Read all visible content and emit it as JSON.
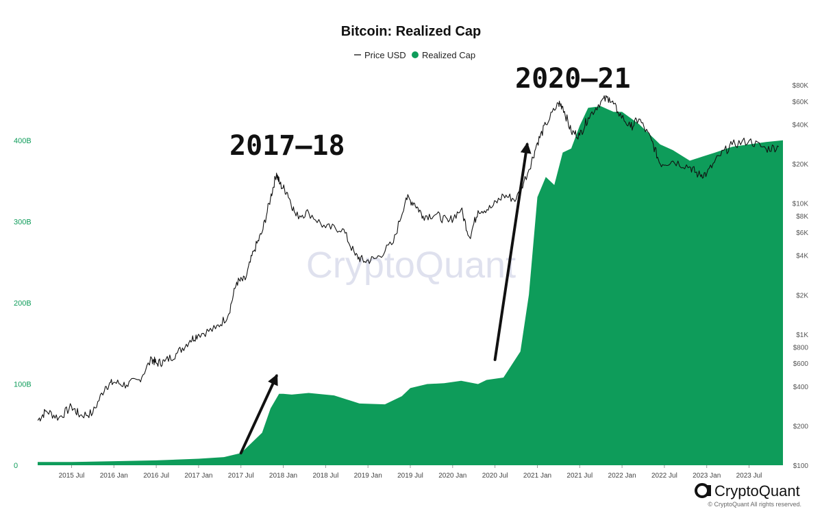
{
  "chart_data": {
    "type": "area",
    "title": "Bitcoin: Realized Cap",
    "legend": [
      {
        "label": "Price USD",
        "style": "line",
        "color": "#111111"
      },
      {
        "label": "Realized Cap",
        "style": "dot",
        "color": "#0e9c5a"
      }
    ],
    "x_ticks": [
      "2015 Jul",
      "2016 Jan",
      "2016 Jul",
      "2017 Jan",
      "2017 Jul",
      "2018 Jan",
      "2018 Jul",
      "2019 Jan",
      "2019 Jul",
      "2020 Jan",
      "2020 Jul",
      "2021 Jan",
      "2021 Jul",
      "2022 Jan",
      "2022 Jul",
      "2023 Jan",
      "2023 Jul"
    ],
    "x_range": [
      2015.1,
      2023.9
    ],
    "left_axis": {
      "ticks": [
        "0",
        "100B",
        "200B",
        "300B",
        "400B"
      ],
      "values": [
        0,
        100,
        200,
        300,
        400
      ],
      "range": [
        0,
        480
      ],
      "unit": "B USD"
    },
    "right_axis": {
      "scale": "log",
      "ticks": [
        "$100",
        "$200",
        "$400",
        "$600",
        "$800",
        "$1K",
        "$2K",
        "$4K",
        "$6K",
        "$8K",
        "$10K",
        "$20K",
        "$40K",
        "$60K",
        "$80K"
      ],
      "values": [
        100,
        200,
        400,
        600,
        800,
        1000,
        2000,
        4000,
        6000,
        8000,
        10000,
        20000,
        40000,
        60000,
        80000
      ],
      "range": [
        100,
        80000
      ]
    },
    "series": [
      {
        "name": "Realized Cap",
        "axis": "left",
        "color": "#0e9c5a",
        "x": [
          2015.1,
          2015.5,
          2016.0,
          2016.5,
          2017.0,
          2017.3,
          2017.5,
          2017.6,
          2017.75,
          2017.85,
          2017.95,
          2018.0,
          2018.1,
          2018.3,
          2018.6,
          2018.9,
          2019.2,
          2019.4,
          2019.5,
          2019.7,
          2019.9,
          2020.1,
          2020.3,
          2020.4,
          2020.6,
          2020.8,
          2020.9,
          2021.0,
          2021.1,
          2021.2,
          2021.3,
          2021.4,
          2021.5,
          2021.6,
          2021.75,
          2021.9,
          2022.0,
          2022.2,
          2022.3,
          2022.45,
          2022.6,
          2022.8,
          2022.95,
          2023.1,
          2023.3,
          2023.5,
          2023.7,
          2023.9
        ],
        "values": [
          4,
          4,
          5,
          6,
          8,
          10,
          15,
          25,
          40,
          70,
          88,
          88,
          87,
          89,
          86,
          76,
          75,
          85,
          95,
          100,
          101,
          104,
          100,
          105,
          108,
          140,
          210,
          330,
          355,
          345,
          385,
          390,
          418,
          440,
          442,
          435,
          435,
          420,
          410,
          395,
          388,
          375,
          380,
          385,
          392,
          395,
          398,
          400
        ]
      },
      {
        "name": "Price USD",
        "axis": "right",
        "color": "#111111",
        "x": [
          2015.1,
          2015.2,
          2015.35,
          2015.5,
          2015.6,
          2015.75,
          2015.9,
          2016.0,
          2016.15,
          2016.3,
          2016.45,
          2016.5,
          2016.6,
          2016.75,
          2016.9,
          2017.0,
          2017.2,
          2017.35,
          2017.45,
          2017.55,
          2017.65,
          2017.75,
          2017.85,
          2017.92,
          2017.96,
          2018.05,
          2018.15,
          2018.3,
          2018.5,
          2018.7,
          2018.85,
          2018.96,
          2019.1,
          2019.3,
          2019.45,
          2019.55,
          2019.65,
          2019.8,
          2019.95,
          2020.1,
          2020.2,
          2020.3,
          2020.45,
          2020.6,
          2020.75,
          2020.9,
          2021.0,
          2021.1,
          2021.25,
          2021.3,
          2021.4,
          2021.5,
          2021.6,
          2021.75,
          2021.85,
          2021.95,
          2022.1,
          2022.2,
          2022.35,
          2022.45,
          2022.6,
          2022.8,
          2022.9,
          2023.0,
          2023.15,
          2023.3,
          2023.5,
          2023.7,
          2023.85
        ],
        "values": [
          220,
          260,
          230,
          280,
          240,
          250,
          400,
          430,
          410,
          450,
          650,
          600,
          620,
          720,
          900,
          1000,
          1100,
          1400,
          2500,
          2600,
          4300,
          6000,
          11000,
          17000,
          14000,
          12000,
          8000,
          8500,
          6500,
          6400,
          4000,
          3600,
          3800,
          5000,
          11000,
          10000,
          8000,
          8200,
          7200,
          9000,
          5500,
          8800,
          9200,
          11500,
          10700,
          18000,
          29000,
          40000,
          58000,
          55000,
          35000,
          33000,
          45000,
          60000,
          64000,
          50000,
          38000,
          44000,
          30000,
          20000,
          21000,
          19000,
          16500,
          16800,
          23000,
          28000,
          30000,
          26000,
          27000
        ]
      }
    ],
    "annotations": [
      {
        "text": "2017–18"
      },
      {
        "text": "2020–21"
      }
    ],
    "arrows": [
      {
        "from_x": 2017.5,
        "from_y": 15,
        "to_x": 2017.92,
        "to_y": 110
      },
      {
        "from_x": 2020.5,
        "from_y": 130,
        "to_x": 2020.88,
        "to_y": 395
      }
    ]
  },
  "watermark": "CryptoQuant",
  "brand": {
    "name": "CryptoQuant",
    "copyright": "© CryptoQuant All rights reserved."
  }
}
